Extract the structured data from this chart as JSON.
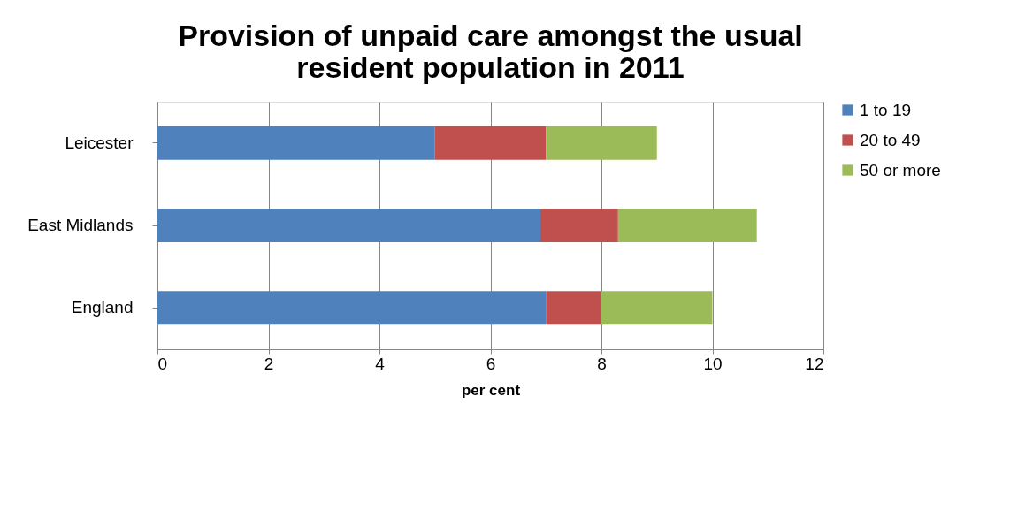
{
  "chart_data": {
    "type": "bar",
    "orientation": "horizontal",
    "stacked": true,
    "title": "Provision of unpaid care amongst the usual resident population in 2011",
    "xlabel": "per cent",
    "categories": [
      "Leicester",
      "East Midlands",
      "England"
    ],
    "series": [
      {
        "name": "1 to 19",
        "color": "#4f81bd",
        "values": [
          5.0,
          6.9,
          7.0
        ]
      },
      {
        "name": "20 to 49",
        "color": "#c0504d",
        "values": [
          2.0,
          1.4,
          1.0
        ]
      },
      {
        "name": "50 or more",
        "color": "#9bbb59",
        "values": [
          2.0,
          2.5,
          2.0
        ]
      }
    ],
    "xlim": [
      0,
      12
    ],
    "xticks": [
      0,
      2,
      4,
      6,
      8,
      10,
      12
    ],
    "grid": "x",
    "legend": "right"
  }
}
